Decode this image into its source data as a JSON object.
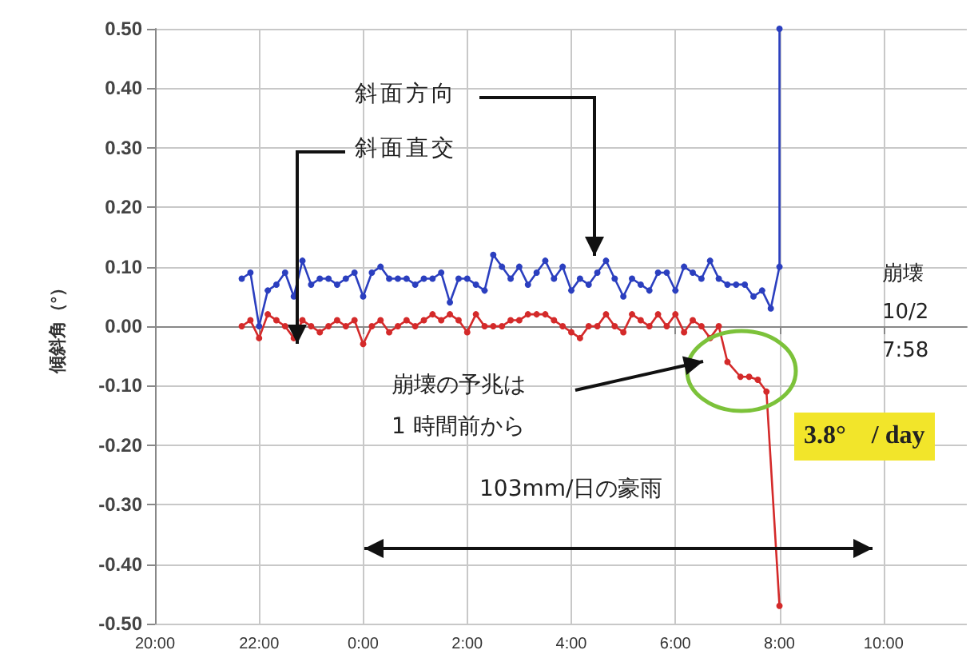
{
  "chart_data": {
    "type": "line",
    "ylabel": "傾斜角（°）",
    "xlim": [
      "--10-01T20:00",
      "--10-02T11:36"
    ],
    "ylim": [
      -0.5,
      0.5
    ],
    "xticks": [
      {
        "value": "--10-01T20:00",
        "label": "20:00"
      },
      {
        "value": "--10-01T22:00",
        "label": "22:00"
      },
      {
        "value": "--10-02T00:00",
        "label": "0:00"
      },
      {
        "value": "--10-02T02:00",
        "label": "2:00"
      },
      {
        "value": "--10-02T04:00",
        "label": "4:00"
      },
      {
        "value": "--10-02T06:00",
        "label": "6:00"
      },
      {
        "value": "--10-02T08:00",
        "label": "8:00"
      },
      {
        "value": "--10-02T10:00",
        "label": "10:00"
      }
    ],
    "yticks": [
      {
        "value": -0.5,
        "label": "-0.50"
      },
      {
        "value": -0.4,
        "label": "-0.40"
      },
      {
        "value": -0.3,
        "label": "-0.30"
      },
      {
        "value": -0.2,
        "label": "-0.20"
      },
      {
        "value": -0.1,
        "label": "-0.10"
      },
      {
        "value": 0,
        "label": "0.00"
      },
      {
        "value": 0.1,
        "label": "0.10"
      },
      {
        "value": 0.2,
        "label": "0.20"
      },
      {
        "value": 0.3,
        "label": "0.30"
      },
      {
        "value": 0.4,
        "label": "0.40"
      },
      {
        "value": 0.5,
        "label": "0.50"
      }
    ],
    "grid": true,
    "marker": "circle",
    "line_style": "solid",
    "series": [
      {
        "name": "斜面方向",
        "color": "#2b3fbf",
        "x": [
          "--10-01T21:40",
          "--10-01T21:50",
          "--10-01T22:00",
          "--10-01T22:10",
          "--10-01T22:20",
          "--10-01T22:30",
          "--10-01T22:40",
          "--10-01T22:50",
          "--10-01T23:00",
          "--10-01T23:10",
          "--10-01T23:20",
          "--10-01T23:30",
          "--10-01T23:40",
          "--10-01T23:50",
          "--10-02T00:00",
          "--10-02T00:10",
          "--10-02T00:20",
          "--10-02T00:30",
          "--10-02T00:40",
          "--10-02T00:50",
          "--10-02T01:00",
          "--10-02T01:10",
          "--10-02T01:20",
          "--10-02T01:30",
          "--10-02T01:40",
          "--10-02T01:50",
          "--10-02T02:00",
          "--10-02T02:10",
          "--10-02T02:20",
          "--10-02T02:30",
          "--10-02T02:40",
          "--10-02T02:50",
          "--10-02T03:00",
          "--10-02T03:10",
          "--10-02T03:20",
          "--10-02T03:30",
          "--10-02T03:40",
          "--10-02T03:50",
          "--10-02T04:00",
          "--10-02T04:10",
          "--10-02T04:20",
          "--10-02T04:30",
          "--10-02T04:40",
          "--10-02T04:50",
          "--10-02T05:00",
          "--10-02T05:10",
          "--10-02T05:20",
          "--10-02T05:30",
          "--10-02T05:40",
          "--10-02T05:50",
          "--10-02T06:00",
          "--10-02T06:10",
          "--10-02T06:20",
          "--10-02T06:30",
          "--10-02T06:40",
          "--10-02T06:50",
          "--10-02T07:00",
          "--10-02T07:10",
          "--10-02T07:20",
          "--10-02T07:30",
          "--10-02T07:40",
          "--10-02T07:50",
          "--10-02T08:00",
          "--10-02T08:00"
        ],
        "values": [
          0.08,
          0.09,
          0.0,
          0.06,
          0.07,
          0.09,
          0.05,
          0.11,
          0.07,
          0.08,
          0.08,
          0.07,
          0.08,
          0.09,
          0.05,
          0.09,
          0.1,
          0.08,
          0.08,
          0.08,
          0.07,
          0.08,
          0.08,
          0.09,
          0.04,
          0.08,
          0.08,
          0.07,
          0.06,
          0.12,
          0.1,
          0.08,
          0.1,
          0.07,
          0.09,
          0.11,
          0.08,
          0.1,
          0.06,
          0.08,
          0.07,
          0.09,
          0.11,
          0.08,
          0.05,
          0.08,
          0.07,
          0.06,
          0.09,
          0.09,
          0.06,
          0.1,
          0.09,
          0.08,
          0.11,
          0.08,
          0.07,
          0.07,
          0.07,
          0.05,
          0.06,
          0.03,
          0.1,
          0.5
        ]
      },
      {
        "name": "斜面直交",
        "color": "#d42a2a",
        "x": [
          "--10-01T21:40",
          "--10-01T21:50",
          "--10-01T22:00",
          "--10-01T22:10",
          "--10-01T22:20",
          "--10-01T22:30",
          "--10-01T22:40",
          "--10-01T22:50",
          "--10-01T23:00",
          "--10-01T23:10",
          "--10-01T23:20",
          "--10-01T23:30",
          "--10-01T23:40",
          "--10-01T23:50",
          "--10-02T00:00",
          "--10-02T00:10",
          "--10-02T00:20",
          "--10-02T00:30",
          "--10-02T00:40",
          "--10-02T00:50",
          "--10-02T01:00",
          "--10-02T01:10",
          "--10-02T01:20",
          "--10-02T01:30",
          "--10-02T01:40",
          "--10-02T01:50",
          "--10-02T02:00",
          "--10-02T02:10",
          "--10-02T02:20",
          "--10-02T02:30",
          "--10-02T02:40",
          "--10-02T02:50",
          "--10-02T03:00",
          "--10-02T03:10",
          "--10-02T03:20",
          "--10-02T03:30",
          "--10-02T03:40",
          "--10-02T03:50",
          "--10-02T04:00",
          "--10-02T04:10",
          "--10-02T04:20",
          "--10-02T04:30",
          "--10-02T04:40",
          "--10-02T04:50",
          "--10-02T05:00",
          "--10-02T05:10",
          "--10-02T05:20",
          "--10-02T05:30",
          "--10-02T05:40",
          "--10-02T05:50",
          "--10-02T06:00",
          "--10-02T06:10",
          "--10-02T06:20",
          "--10-02T06:30",
          "--10-02T06:40",
          "--10-02T06:50",
          "--10-02T07:00",
          "--10-02T07:15",
          "--10-02T07:25",
          "--10-02T07:35",
          "--10-02T07:45",
          "--10-02T08:00"
        ],
        "values": [
          0.0,
          0.01,
          -0.02,
          0.02,
          0.01,
          0.0,
          -0.02,
          0.01,
          0.0,
          -0.01,
          0.0,
          0.01,
          0.0,
          0.01,
          -0.03,
          0.0,
          0.01,
          -0.01,
          0.0,
          0.01,
          0.0,
          0.01,
          0.02,
          0.01,
          0.02,
          0.01,
          -0.01,
          0.02,
          0.0,
          0.0,
          0.0,
          0.01,
          0.01,
          0.02,
          0.02,
          0.02,
          0.01,
          0.0,
          -0.01,
          -0.02,
          0.0,
          0.0,
          0.02,
          0.0,
          -0.01,
          0.02,
          0.01,
          0.0,
          0.02,
          0.0,
          0.02,
          -0.01,
          0.01,
          0.0,
          -0.02,
          0.0,
          -0.06,
          -0.085,
          -0.085,
          -0.09,
          -0.11,
          -0.47
        ]
      }
    ],
    "annotations": [
      "崩壊\n10/2\n7:58",
      "崩壊の予兆は\n1 時間前から",
      "3.8°　/ day",
      "103mm/日の豪雨"
    ]
  }
}
